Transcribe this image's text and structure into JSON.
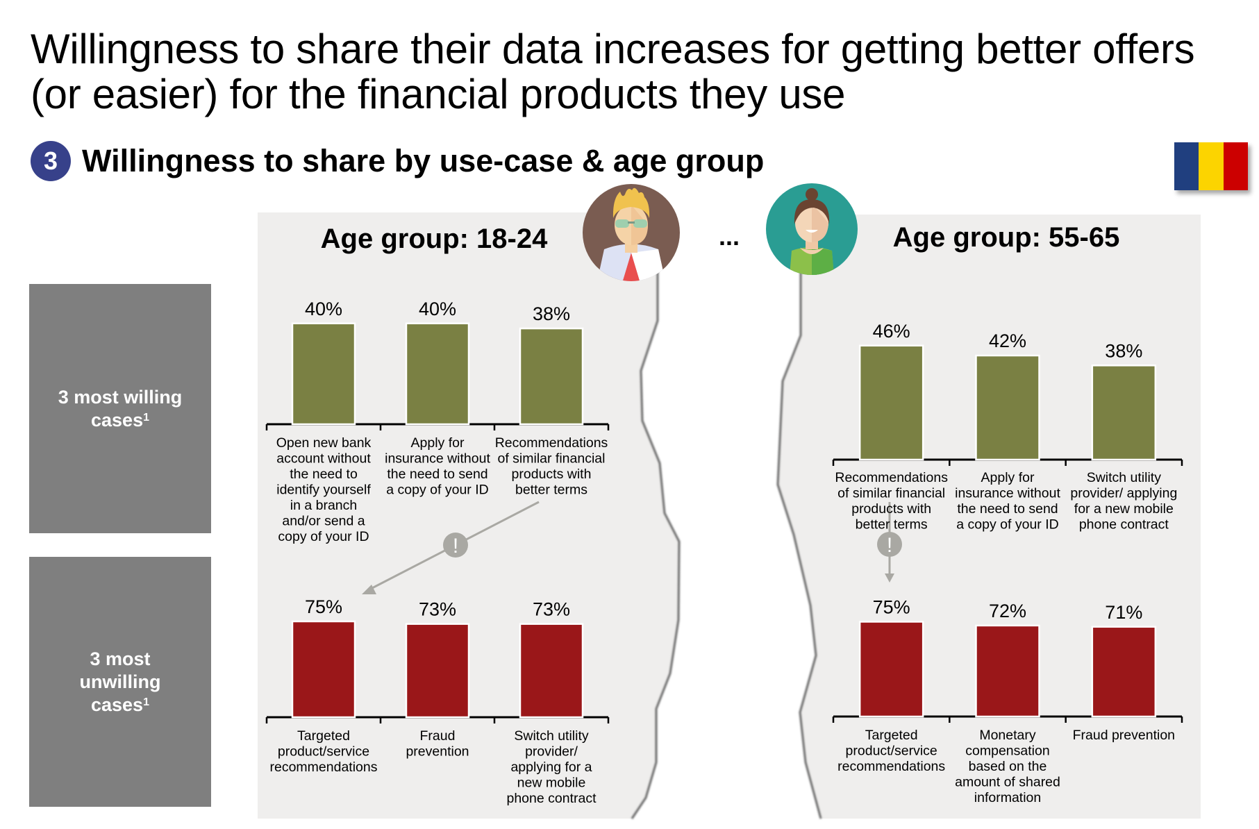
{
  "title": {
    "line1": "Willingness to share their data increases for getting better offers",
    "line2": "(or easier) for the financial products they use"
  },
  "section": {
    "number": "3",
    "title": "Willingness to share by use-case & age group"
  },
  "flag": {
    "country_colors": [
      "#203f7f",
      "#fcd400",
      "#cc0000"
    ]
  },
  "side_labels": {
    "willing": {
      "text": "3 most  willing cases",
      "superscript": "1",
      "line1": "3 most  willing",
      "line2": "cases"
    },
    "unwilling": {
      "text": "3 most unwilling cases",
      "superscript": "1",
      "line1": "3 most",
      "line2": "unwilling",
      "line3": "cases"
    }
  },
  "ellipsis": "...",
  "colors": {
    "willing_bar": "#7a8043",
    "unwilling_bar": "#9a1719",
    "panel_bg": "#efeeed",
    "side_box": "#7f7f7f",
    "callout": "#a9a8a3"
  },
  "callout_icon": "exclamation-icon",
  "callout_symbol": "!",
  "chart_data": [
    {
      "type": "bar",
      "title": "Age group: 18-24",
      "subtitle": "3 most willing cases",
      "categories": [
        "Open new bank\naccount without\nthe need to\nidentify yourself\nin a branch\nand/or send a\ncopy of your ID",
        "Apply for\ninsurance without\nthe need to send\na copy of your ID",
        "Recommendations\nof similar financial\nproducts with\nbetter terms"
      ],
      "values": [
        40,
        40,
        38
      ],
      "labels": [
        "40%",
        "40%",
        "38%"
      ],
      "ylim": [
        0,
        100
      ],
      "grid": false
    },
    {
      "type": "bar",
      "title": "Age group: 18-24",
      "subtitle": "3 most unwilling cases",
      "categories": [
        "Targeted\nproduct/service\nrecommendations",
        "Fraud\nprevention",
        "Switch utility\nprovider/\napplying for a\nnew mobile\nphone contract"
      ],
      "values": [
        75,
        73,
        73
      ],
      "labels": [
        "75%",
        "73%",
        "73%"
      ],
      "ylim": [
        0,
        100
      ],
      "grid": false
    },
    {
      "type": "bar",
      "title": "Age group: 55-65",
      "subtitle": "3 most willing cases",
      "categories": [
        "Recommendations\nof similar financial\nproducts with\nbetter terms",
        "Apply for\ninsurance without\nthe need to send\na copy of your ID",
        "Switch utility\nprovider/ applying\nfor a new mobile\nphone contract"
      ],
      "values": [
        46,
        42,
        38
      ],
      "labels": [
        "46%",
        "42%",
        "38%"
      ],
      "ylim": [
        0,
        100
      ],
      "grid": false
    },
    {
      "type": "bar",
      "title": "Age group: 55-65",
      "subtitle": "3 most unwilling cases",
      "categories": [
        "Targeted\nproduct/service\nrecommendations",
        "Monetary\ncompensation\nbased on the\namount of shared\ninformation",
        "Fraud prevention"
      ],
      "values": [
        75,
        72,
        71
      ],
      "labels": [
        "75%",
        "72%",
        "71%"
      ],
      "ylim": [
        0,
        100
      ],
      "grid": false
    }
  ]
}
